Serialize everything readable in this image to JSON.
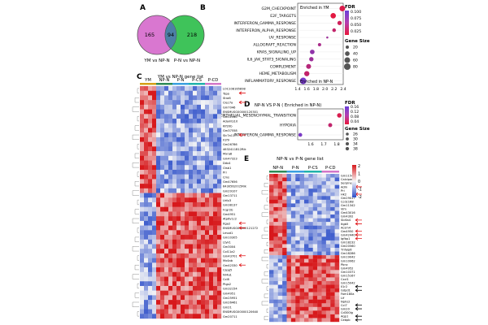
{
  "panel_letters": {
    "a": "A",
    "b": "B",
    "c": "C",
    "d": "D",
    "e": "E"
  },
  "venn": {
    "left_only": "165",
    "overlap": "94",
    "right_only": "218",
    "left_label": "YM vs NP-N",
    "right_label": "P-N vs NP-N",
    "left_color": "#d977d0",
    "right_color": "#3fc35a",
    "overlap_color": "#4c7fa6"
  },
  "dotplot_b": {
    "legend_top": "Enriched in YM",
    "legend_bottom": "Enriched in NP-N",
    "terms": [
      "G2M_CHECKPOINT",
      "E2F_TARGETS",
      "INTERFERON_GAMMA_RESPONSE",
      "INTERFERON_ALPHA_RESPONSE",
      "UV_RESPONSE",
      "ALLOGRAFT_REACTION",
      "KRAS_SIGNALING_UP",
      "IL6_JAK_STAT3_SIGNALING",
      "COMPLEMENT",
      "HEME_METABOLISM",
      "INFLAMMATORY_RESPONSE"
    ],
    "x_ticks": [
      "1.4",
      "1.6",
      "1.8",
      "2.0",
      "2.2",
      "2.4"
    ],
    "fdr_title": "FDR",
    "fdr_ticks": [
      "0.100",
      "0.075",
      "0.050",
      "0.025"
    ],
    "size_title": "Gene Size",
    "size_ticks": [
      "20",
      "40",
      "60",
      "80"
    ]
  },
  "dotplot_d": {
    "title": "NP-N VS P-N ( Enriched in NP-N)",
    "terms": [
      "EPITHELIAL_MESENCHYMAL_TRANSITION",
      "HYPOXIA",
      "INTERFERON_GAMMA_RESPONSE"
    ],
    "x_ticks": [
      "1.6",
      "1.7",
      "1.8"
    ],
    "fdr_title": "FDR",
    "fdr_ticks": [
      "0.16",
      "0.12",
      "0.08",
      "0.04"
    ],
    "size_title": "Gene Size",
    "size_ticks": [
      "26",
      "30",
      "34",
      "38"
    ]
  },
  "heatmap_c": {
    "title": "YM vs NP-N gene list",
    "groups": [
      "YM",
      "NP-N",
      "P-N",
      "P-CS",
      "P-CD"
    ],
    "group_colors": [
      "#d4a017",
      "#2e8b57",
      "#3aa0e0",
      "#20b2aa",
      "#d377c8"
    ],
    "genes": [
      "LOC108165898",
      "Tspo",
      "Stra6",
      "Clec7a",
      "Gm7046",
      "ENSMUSG00000120301",
      "Gm11540",
      "Adamts10",
      "Kif20b",
      "Gm37558",
      "Slc7a11",
      "Il1f9",
      "Gm26786",
      "4632411B12Rik",
      "Mxra8",
      "Gm47323",
      "Ddx4",
      "Ctsb1",
      "Pri",
      "Cms",
      "Gm47656",
      "6430562O15Rik",
      "Gm29107",
      "Gm13711",
      "Lhfp3",
      "Gm38137",
      "Fcgr2b",
      "Gm4951",
      "Atp6v1c2",
      "Itga2",
      "ENSMUSG00000121272",
      "Lmod1",
      "Gm10305",
      "Ltyk1",
      "Gm3004",
      "Col11a2",
      "Gm43701",
      "Mx4ab",
      "Gm42330",
      "Cspg5",
      "Nr4a1",
      "Ccl8",
      "Ptgs2",
      "Gm32154",
      "Gm4951",
      "Gm25951",
      "Gm26461",
      "Gm21",
      "ENSMUSG00000120640",
      "Gm20711"
    ]
  },
  "heatmap_e": {
    "title": "NP-N vs P-N gene list",
    "groups": [
      "NP-N",
      "P-N",
      "P-CS",
      "P-CD"
    ],
    "group_colors": [
      "#2e8b57",
      "#3aa0e0",
      "#20b2aa",
      "#d377c8"
    ],
    "scale_ticks": [
      "2",
      "1",
      "0",
      "-1",
      "-2"
    ],
    "genes": [
      "Gm11544",
      "Calcipen",
      "Serpine1",
      "Adm",
      "Pri",
      "Hk2",
      "Gm29017",
      "Ccdc168",
      "Gm11342",
      "Vim",
      "Gm43016",
      "Gm4392",
      "Slc6a4",
      "Itgb5",
      "Acsm4",
      "Gm4950",
      "Gm42440",
      "Igfbp1",
      "Gm18232",
      "Gm20560",
      "Tnfaip6",
      "Gm18286",
      "Gm19042",
      "Gm10062",
      "Pbnc",
      "Gm4952",
      "Gm10371",
      "Gm15167",
      "Cxcl1",
      "Gm15042",
      "Il1r2",
      "Gdpd1",
      "Fam180a",
      "Lif",
      "Nphs2",
      "Ccl7",
      "Gm20",
      "Cd300lg",
      "Aqp1",
      "Cebpb"
    ]
  },
  "chart_data": [
    {
      "type": "scatter",
      "title": "",
      "legend_note": "Enriched in YM / Enriched in NP-N",
      "categories": [
        "G2M_CHECKPOINT",
        "E2F_TARGETS",
        "INTERFERON_GAMMA_RESPONSE",
        "INTERFERON_ALPHA_RESPONSE",
        "UV_RESPONSE",
        "ALLOGRAFT_REACTION",
        "KRAS_SIGNALING_UP",
        "IL6_JAK_STAT3_SIGNALING",
        "COMPLEMENT",
        "HEME_METABOLISM",
        "INFLAMMATORY_RESPONSE"
      ],
      "x": [
        2.38,
        2.18,
        2.32,
        2.2,
        2.05,
        1.88,
        1.72,
        1.7,
        1.64,
        1.6,
        1.52
      ],
      "fdr": [
        0.01,
        0.005,
        0.02,
        0.03,
        0.06,
        0.05,
        0.07,
        0.06,
        0.04,
        0.03,
        0.09
      ],
      "gene_size": [
        60,
        55,
        35,
        25,
        8,
        20,
        40,
        35,
        45,
        50,
        80
      ],
      "xlim": [
        1.4,
        2.4
      ]
    },
    {
      "type": "scatter",
      "title": "NP-N VS P-N ( Enriched in NP-N)",
      "categories": [
        "EPITHELIAL_MESENCHYMAL_TRANSITION",
        "HYPOXIA",
        "INTERFERON_GAMMA_RESPONSE"
      ],
      "x": [
        1.82,
        1.75,
        1.52
      ],
      "fdr": [
        0.02,
        0.05,
        0.14
      ],
      "gene_size": [
        38,
        30,
        28
      ],
      "xlim": [
        1.5,
        1.85
      ]
    }
  ]
}
